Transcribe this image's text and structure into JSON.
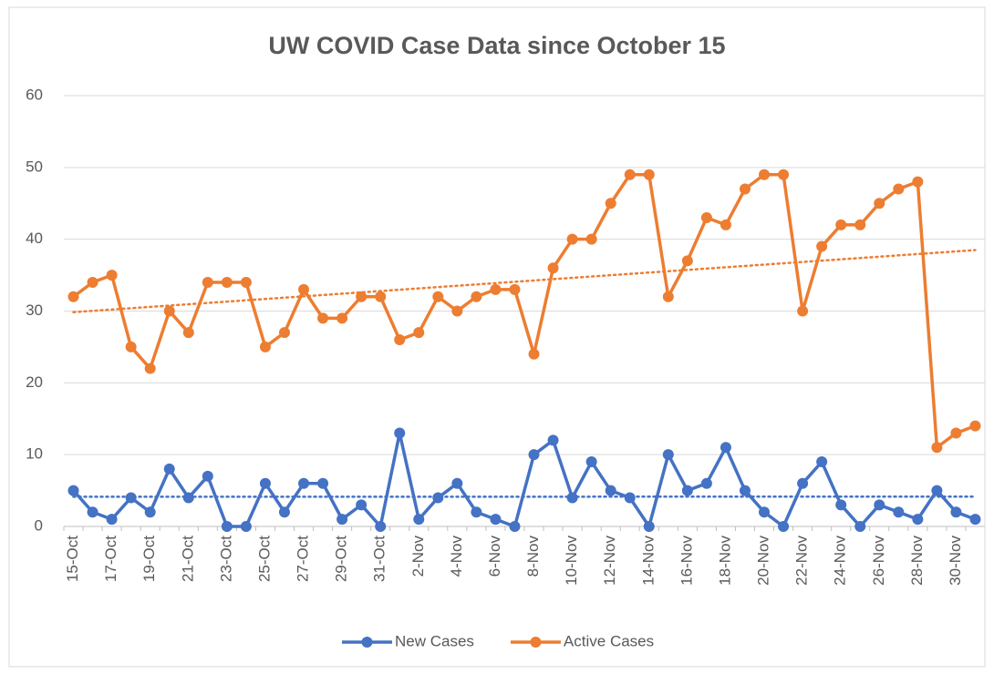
{
  "chart_data": {
    "type": "line",
    "title": "UW COVID Case Data since October 15",
    "categories": [
      "15-Oct",
      null,
      "17-Oct",
      null,
      "19-Oct",
      null,
      "21-Oct",
      null,
      "23-Oct",
      null,
      "25-Oct",
      null,
      "27-Oct",
      null,
      "29-Oct",
      null,
      "31-Oct",
      null,
      "2-Nov",
      null,
      "4-Nov",
      null,
      "6-Nov",
      null,
      "8-Nov",
      null,
      "10-Nov",
      null,
      "12-Nov",
      null,
      "14-Nov",
      null,
      "16-Nov",
      null,
      "18-Nov",
      null,
      "20-Nov",
      null,
      "22-Nov",
      null,
      "24-Nov",
      null,
      "26-Nov",
      null,
      "28-Nov",
      null,
      "30-Nov",
      null
    ],
    "series": [
      {
        "name": "New Cases",
        "color": "#4472c4",
        "trendline": true,
        "values": [
          5,
          2,
          1,
          4,
          2,
          8,
          4,
          7,
          0,
          0,
          6,
          2,
          6,
          6,
          1,
          3,
          0,
          13,
          1,
          4,
          6,
          2,
          1,
          0,
          10,
          12,
          4,
          9,
          5,
          4,
          0,
          10,
          5,
          6,
          11,
          5,
          2,
          0,
          6,
          9,
          3,
          0,
          3,
          2,
          1,
          5,
          2,
          1
        ]
      },
      {
        "name": "Active Cases",
        "color": "#ed7d31",
        "trendline": true,
        "values": [
          32,
          34,
          35,
          25,
          22,
          30,
          27,
          34,
          34,
          34,
          25,
          27,
          33,
          29,
          29,
          32,
          32,
          26,
          27,
          32,
          30,
          32,
          33,
          33,
          24,
          36,
          40,
          40,
          45,
          49,
          49,
          32,
          37,
          43,
          42,
          47,
          49,
          49,
          30,
          39,
          42,
          42,
          45,
          47,
          48,
          11,
          13,
          14
        ]
      }
    ],
    "ylim": [
      0,
      60
    ],
    "yticks": [
      0,
      10,
      20,
      30,
      40,
      50,
      60
    ],
    "grid": true,
    "legend": "bottom"
  }
}
